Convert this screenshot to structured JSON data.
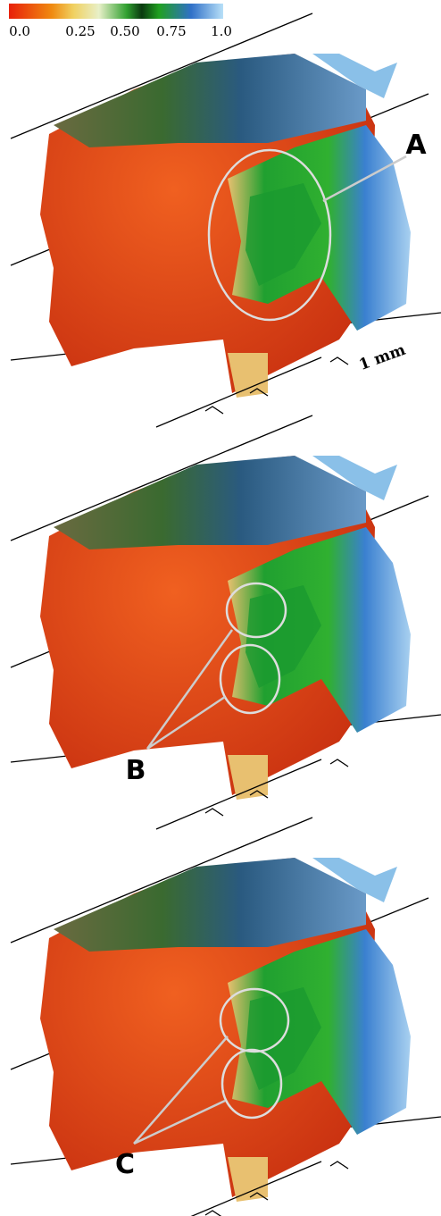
{
  "colorbar": {
    "ticks": [
      "0.0",
      "0.25",
      "0.50",
      "0.75",
      "1.0"
    ]
  },
  "panels": [
    {
      "label": "A",
      "scale_label": "1 mm"
    },
    {
      "label": "B"
    },
    {
      "label": "C"
    }
  ]
}
